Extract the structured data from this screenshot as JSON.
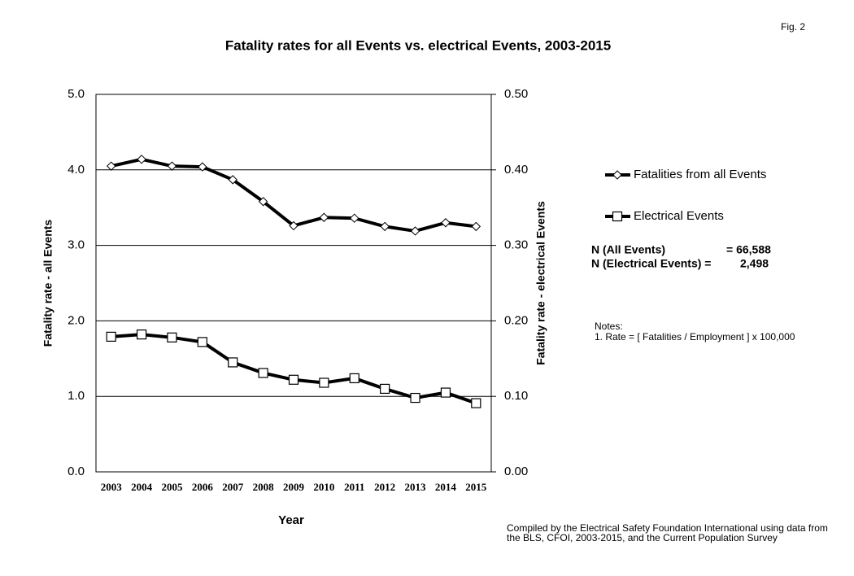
{
  "chart_data": {
    "type": "line",
    "title": "Fatality rates for all Events vs. electrical Events, 2003-2015",
    "figure_label": "Fig. 2",
    "x_label": "Year",
    "y_label": "Fatality rate - all Events",
    "y2_label": "Fatality rate - electrical Events",
    "categories": [
      "2003",
      "2004",
      "2005",
      "2006",
      "2007",
      "2008",
      "2009",
      "2010",
      "2011",
      "2012",
      "2013",
      "2014",
      "2015"
    ],
    "series": [
      {
        "name": "Fatalities from all Events",
        "color": "#000000",
        "marker": "diamond",
        "values": [
          4.05,
          4.14,
          4.05,
          4.04,
          3.87,
          3.58,
          3.26,
          3.37,
          3.36,
          3.25,
          3.19,
          3.3,
          3.25
        ]
      },
      {
        "name": "Electrical Events",
        "color": "#000000",
        "marker": "square",
        "axis": "y2",
        "values": [
          0.179,
          0.182,
          0.178,
          0.172,
          0.145,
          0.131,
          0.122,
          0.118,
          0.124,
          0.11,
          0.098,
          0.105,
          0.091
        ]
      }
    ],
    "ylim": [
      0,
      5
    ],
    "yticks": [
      {
        "value": 0,
        "label": "0.0"
      },
      {
        "value": 1,
        "label": "1.0"
      },
      {
        "value": 2,
        "label": "2.0"
      },
      {
        "value": 3,
        "label": "3.0"
      },
      {
        "value": 4,
        "label": "4.0"
      },
      {
        "value": 5,
        "label": "5.0"
      }
    ],
    "y2lim": [
      0,
      0.5
    ],
    "y2ticks": [
      {
        "value": 0,
        "label": "0.00"
      },
      {
        "value": 0.1,
        "label": "0.10"
      },
      {
        "value": 0.2,
        "label": "0.20"
      },
      {
        "value": 0.3,
        "label": "0.30"
      },
      {
        "value": 0.4,
        "label": "0.40"
      },
      {
        "value": 0.5,
        "label": "0.50"
      }
    ],
    "grid": true,
    "legend": "right",
    "annotations": {
      "n_all_label": "N (All Events)",
      "n_all_value": "= 66,588",
      "n_elec_label": "N (Electrical Events) =",
      "n_elec_value": "2,498",
      "notes_title": "Notes:",
      "note_1": "1.  Rate = [ Fatalities / Employment ] x 100,000",
      "credit_1": "Compiled by the Electrical Safety Foundation International using data from",
      "credit_2": "the BLS, CFOI, 2003-2015, and the Current Population Survey"
    }
  }
}
